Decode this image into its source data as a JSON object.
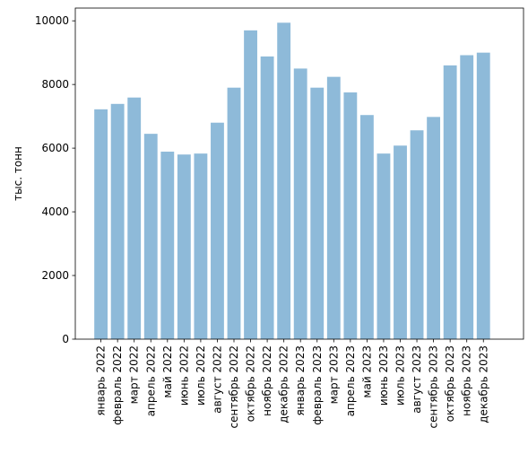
{
  "chart_data": {
    "type": "bar",
    "title": "",
    "xlabel": "",
    "ylabel": "тыс. тонн",
    "ylim": [
      0,
      10400
    ],
    "yticks": [
      0,
      2000,
      4000,
      6000,
      8000,
      10000
    ],
    "grid": false,
    "bar_color": "#8ebad9",
    "categories": [
      "январь 2022",
      "февраль 2022",
      "март 2022",
      "апрель 2022",
      "май 2022",
      "июнь 2022",
      "июль 2022",
      "август 2022",
      "сентябрь 2022",
      "октябрь 2022",
      "ноябрь 2022",
      "декабрь 2022",
      "январь 2023",
      "февраль 2023",
      "март 2023",
      "апрель 2023",
      "май 2023",
      "июнь 2023",
      "июль 2023",
      "август 2023",
      "сентябрь 2023",
      "октябрь 2023",
      "ноябрь 2023",
      "декабрь 2023"
    ],
    "values": [
      7220,
      7390,
      7590,
      6450,
      5890,
      5800,
      5830,
      6800,
      7900,
      9700,
      8880,
      9940,
      8500,
      7900,
      8240,
      7750,
      7040,
      5830,
      6080,
      6560,
      6980,
      8600,
      8920,
      9000
    ]
  }
}
